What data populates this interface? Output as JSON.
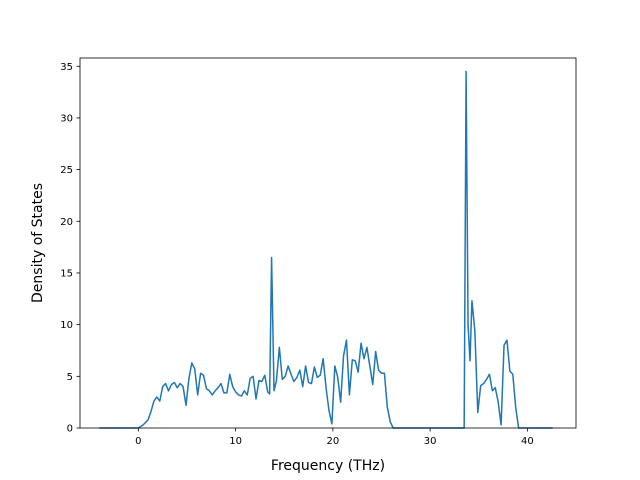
{
  "chart_data": {
    "type": "line",
    "title": "",
    "xlabel": "Frequency (THz)",
    "ylabel": "Density of States",
    "xlim": [
      -6.0,
      45.0
    ],
    "ylim": [
      0,
      35.8
    ],
    "xticks": [
      0,
      10,
      20,
      30,
      40
    ],
    "yticks": [
      0,
      5,
      10,
      15,
      20,
      25,
      30,
      35
    ],
    "grid": false,
    "legend": "none",
    "line_color": "#1f77b4",
    "series": [
      {
        "x": [
          -4.0,
          0.0,
          0.5,
          1.0,
          1.3,
          1.6,
          1.9,
          2.2,
          2.5,
          2.8,
          3.1,
          3.4,
          3.7,
          4.0,
          4.3,
          4.6,
          4.9,
          5.2,
          5.5,
          5.8,
          6.1,
          6.4,
          6.7,
          7.0,
          7.3,
          7.6,
          7.9,
          8.2,
          8.5,
          8.8,
          9.1,
          9.4,
          9.7,
          10.0,
          10.3,
          10.6,
          10.9,
          11.2,
          11.5,
          11.8,
          12.1,
          12.4,
          12.7,
          13.0,
          13.3,
          13.5,
          13.7,
          13.95,
          14.2,
          14.5,
          14.8,
          15.1,
          15.4,
          15.7,
          16.0,
          16.3,
          16.6,
          16.9,
          17.2,
          17.5,
          17.8,
          18.1,
          18.4,
          18.7,
          19.0,
          19.3,
          19.6,
          19.9,
          20.2,
          20.5,
          20.8,
          21.1,
          21.4,
          21.7,
          22.0,
          22.3,
          22.6,
          22.9,
          23.2,
          23.5,
          23.8,
          24.1,
          24.4,
          24.7,
          25.0,
          25.3,
          25.6,
          25.9,
          26.2,
          26.5,
          33.5,
          33.7,
          33.9,
          34.1,
          34.3,
          34.6,
          34.9,
          35.2,
          35.5,
          35.8,
          36.1,
          36.4,
          36.7,
          37.0,
          37.3,
          37.6,
          37.9,
          38.2,
          38.5,
          38.8,
          39.1,
          39.4,
          42.6
        ],
        "y": [
          0,
          0,
          0.3,
          0.8,
          1.6,
          2.6,
          3.0,
          2.6,
          4.0,
          4.3,
          3.6,
          4.2,
          4.4,
          3.9,
          4.3,
          4.0,
          2.2,
          4.8,
          6.3,
          5.7,
          3.2,
          5.3,
          5.1,
          3.8,
          3.6,
          3.2,
          3.6,
          3.9,
          4.3,
          3.4,
          3.4,
          5.2,
          4.0,
          3.5,
          3.2,
          3.1,
          3.6,
          3.2,
          4.8,
          5.0,
          2.8,
          4.6,
          4.5,
          5.1,
          3.5,
          3.3,
          16.5,
          3.6,
          4.6,
          7.8,
          4.7,
          5.0,
          6.0,
          5.2,
          4.5,
          4.9,
          5.6,
          4.0,
          6.0,
          4.4,
          4.3,
          5.9,
          4.9,
          5.1,
          6.7,
          3.9,
          1.7,
          0.4,
          6.0,
          4.9,
          2.5,
          7.0,
          8.5,
          3.2,
          6.6,
          6.5,
          5.4,
          8.2,
          6.7,
          7.8,
          6.0,
          4.2,
          7.4,
          5.6,
          5.3,
          5.3,
          2.0,
          0.6,
          0,
          0,
          0,
          34.5,
          10.0,
          6.5,
          12.3,
          9.4,
          1.5,
          4.1,
          4.3,
          4.7,
          5.2,
          3.6,
          3.9,
          2.5,
          0.3,
          8.0,
          8.5,
          5.5,
          5.2,
          2.0,
          0,
          0,
          0
        ]
      }
    ]
  }
}
